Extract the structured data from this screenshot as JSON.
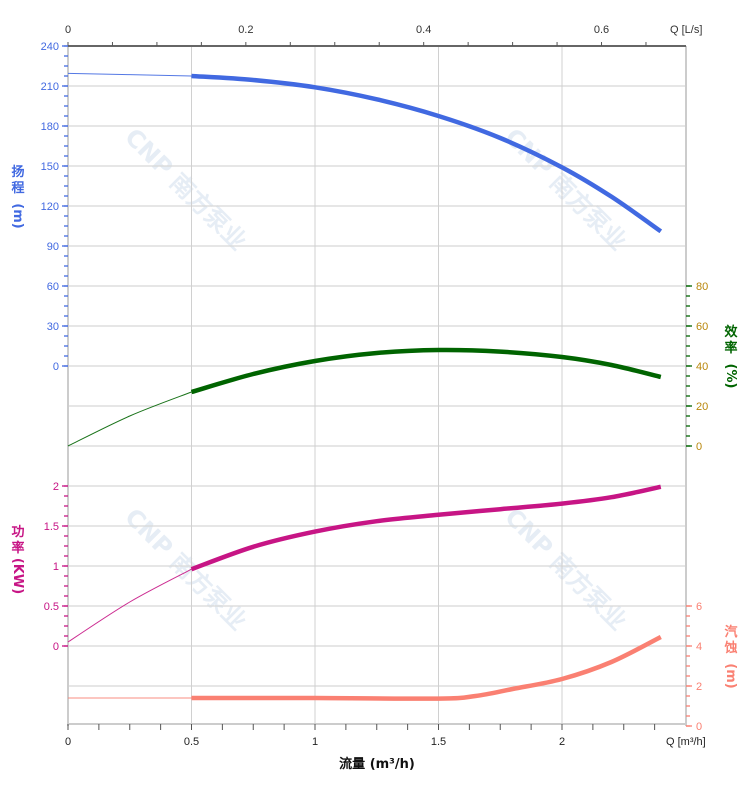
{
  "chart_data": {
    "type": "line",
    "x_axis": {
      "label": "流量 (m³/h)",
      "unit_label": "Q [m³/h]",
      "range": [
        0,
        2.5
      ],
      "ticks": [
        "0",
        "0.5",
        "1",
        "1.5",
        "2"
      ],
      "tick_values": [
        0,
        0.5,
        1,
        1.5,
        2
      ]
    },
    "x2_axis": {
      "unit_label": "Q [L/s]",
      "ticks": [
        "0",
        "0.2",
        "0.4",
        "0.6"
      ],
      "tick_values": [
        0,
        0.2,
        0.4,
        0.6
      ]
    },
    "grid": true,
    "series": [
      {
        "name": "扬程",
        "unit": "(m)",
        "color": "#4169e1",
        "axis": "left-top",
        "range": [
          0,
          240
        ],
        "ticks": [
          "0",
          "30",
          "60",
          "90",
          "120",
          "150",
          "180",
          "210",
          "240"
        ],
        "x": [
          0,
          0.5,
          0.75,
          1.0,
          1.25,
          1.5,
          1.75,
          2.0,
          2.2,
          2.4
        ],
        "y": [
          219.5,
          217.5,
          214.5,
          209,
          200,
          187.5,
          171,
          149,
          127,
          101
        ]
      },
      {
        "name": "效率",
        "unit": "(%)",
        "color": "#006400",
        "axis": "right",
        "range": [
          0,
          80
        ],
        "ticks": [
          "0",
          "20",
          "40",
          "60",
          "80"
        ],
        "x": [
          0,
          0.25,
          0.5,
          0.75,
          1.0,
          1.25,
          1.5,
          1.75,
          2.0,
          2.2,
          2.4
        ],
        "y": [
          0,
          15,
          27,
          36,
          42.5,
          46.5,
          48,
          47.2,
          44.5,
          40.5,
          34.5
        ]
      },
      {
        "name": "功率",
        "unit": "(KW)",
        "color": "#c71585",
        "axis": "left",
        "range": [
          0,
          2
        ],
        "ticks": [
          "0",
          "0.5",
          "1",
          "1.5",
          "2"
        ],
        "x": [
          0,
          0.25,
          0.5,
          0.75,
          1.0,
          1.25,
          1.5,
          1.75,
          2.0,
          2.2,
          2.4
        ],
        "y": [
          0.05,
          0.55,
          0.96,
          1.24,
          1.43,
          1.56,
          1.64,
          1.71,
          1.78,
          1.86,
          1.99
        ]
      },
      {
        "name": "汽蚀",
        "unit": "(m)",
        "color": "#fa8072",
        "axis": "right-bottom",
        "range": [
          0,
          6
        ],
        "ticks": [
          "0",
          "2",
          "4",
          "6"
        ],
        "x": [
          0,
          0.5,
          1.0,
          1.5,
          1.65,
          1.8,
          2.0,
          2.2,
          2.4
        ],
        "y": [
          1.4,
          1.4,
          1.4,
          1.37,
          1.5,
          1.85,
          2.35,
          3.2,
          4.45
        ]
      }
    ],
    "thin_segment_below_x": 0.5
  },
  "watermark": "CNP 南方泵业"
}
